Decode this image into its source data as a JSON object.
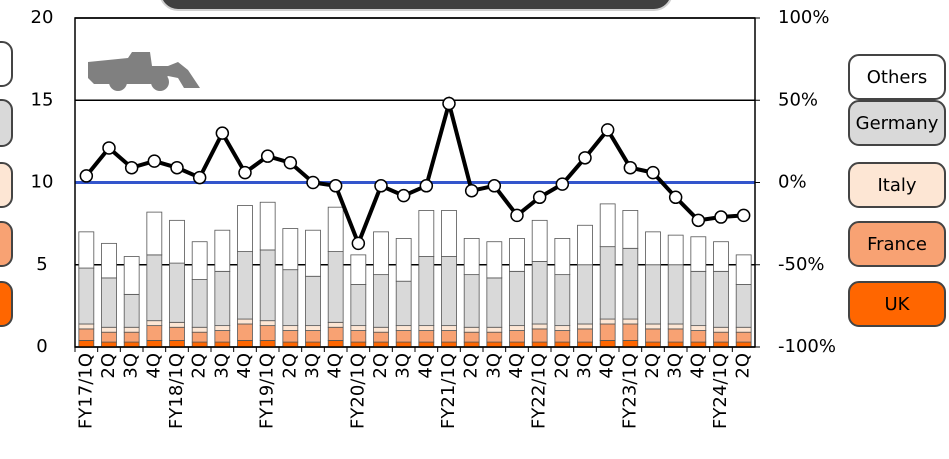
{
  "chart_data": {
    "type": "bar",
    "categories": [
      "FY17/1Q",
      "2Q",
      "3Q",
      "4Q",
      "FY18/1Q",
      "2Q",
      "3Q",
      "4Q",
      "FY19/1Q",
      "2Q",
      "3Q",
      "4Q",
      "FY20/1Q",
      "2Q",
      "3Q",
      "4Q",
      "FY21/1Q",
      "2Q",
      "3Q",
      "4Q",
      "FY22/1Q",
      "2Q",
      "3Q",
      "4Q",
      "FY23/1Q",
      "2Q",
      "3Q",
      "4Q",
      "FY24/1Q",
      "2Q"
    ],
    "series": [
      {
        "name": "UK",
        "color": "#ff6600",
        "values": [
          0.4,
          0.3,
          0.3,
          0.4,
          0.4,
          0.3,
          0.3,
          0.4,
          0.4,
          0.3,
          0.3,
          0.4,
          0.3,
          0.3,
          0.3,
          0.3,
          0.3,
          0.3,
          0.3,
          0.3,
          0.3,
          0.3,
          0.3,
          0.4,
          0.4,
          0.3,
          0.3,
          0.3,
          0.3,
          0.3
        ]
      },
      {
        "name": "France",
        "color": "#f8a273",
        "values": [
          0.7,
          0.6,
          0.6,
          0.9,
          0.8,
          0.6,
          0.7,
          1.0,
          0.9,
          0.7,
          0.7,
          0.8,
          0.7,
          0.6,
          0.7,
          0.7,
          0.7,
          0.6,
          0.6,
          0.7,
          0.8,
          0.7,
          0.8,
          1.0,
          1.0,
          0.8,
          0.8,
          0.7,
          0.6,
          0.6
        ]
      },
      {
        "name": "Italy",
        "color": "#fde6d4",
        "values": [
          0.3,
          0.3,
          0.3,
          0.3,
          0.3,
          0.3,
          0.3,
          0.3,
          0.3,
          0.3,
          0.3,
          0.3,
          0.3,
          0.3,
          0.3,
          0.3,
          0.3,
          0.3,
          0.3,
          0.3,
          0.3,
          0.3,
          0.3,
          0.3,
          0.3,
          0.3,
          0.3,
          0.3,
          0.3,
          0.3
        ]
      },
      {
        "name": "Germany",
        "color": "#d9d9d9",
        "values": [
          3.4,
          3.0,
          2.0,
          4.0,
          3.6,
          2.9,
          3.3,
          4.1,
          4.3,
          3.4,
          3.0,
          4.3,
          2.5,
          3.2,
          2.7,
          4.2,
          4.2,
          3.2,
          3.0,
          3.3,
          3.8,
          3.1,
          3.6,
          4.4,
          4.3,
          3.6,
          3.6,
          3.3,
          3.4,
          2.6
        ]
      },
      {
        "name": "Others",
        "color": "#ffffff",
        "values": [
          2.2,
          2.1,
          2.3,
          2.6,
          2.6,
          2.3,
          2.5,
          2.8,
          2.9,
          2.5,
          2.8,
          2.7,
          1.8,
          2.6,
          2.6,
          2.8,
          2.8,
          2.2,
          2.2,
          2.0,
          2.5,
          2.2,
          2.4,
          2.6,
          2.3,
          2.0,
          1.8,
          2.1,
          1.8,
          1.8
        ]
      }
    ],
    "line": {
      "color": "#000000",
      "axis": "y2",
      "values": [
        4,
        21,
        9,
        13,
        9,
        3,
        30,
        6,
        16,
        12,
        0,
        -2,
        -37,
        -2,
        -8,
        -2,
        48,
        -5,
        -2,
        -20,
        -9,
        -1,
        15,
        32,
        9,
        6,
        -9,
        -23,
        -21,
        -20
      ]
    },
    "ylim": [
      0,
      20
    ],
    "yticks": [
      0,
      5,
      10,
      15,
      20
    ],
    "y2lim": [
      -100,
      100
    ],
    "y2ticks": [
      {
        "value": -100,
        "label": "-100%"
      },
      {
        "value": -50,
        "label": "-50%"
      },
      {
        "value": 0,
        "label": "0%"
      },
      {
        "value": 50,
        "label": "50%"
      },
      {
        "value": 100,
        "label": "100%"
      }
    ],
    "grid": true
  }
}
